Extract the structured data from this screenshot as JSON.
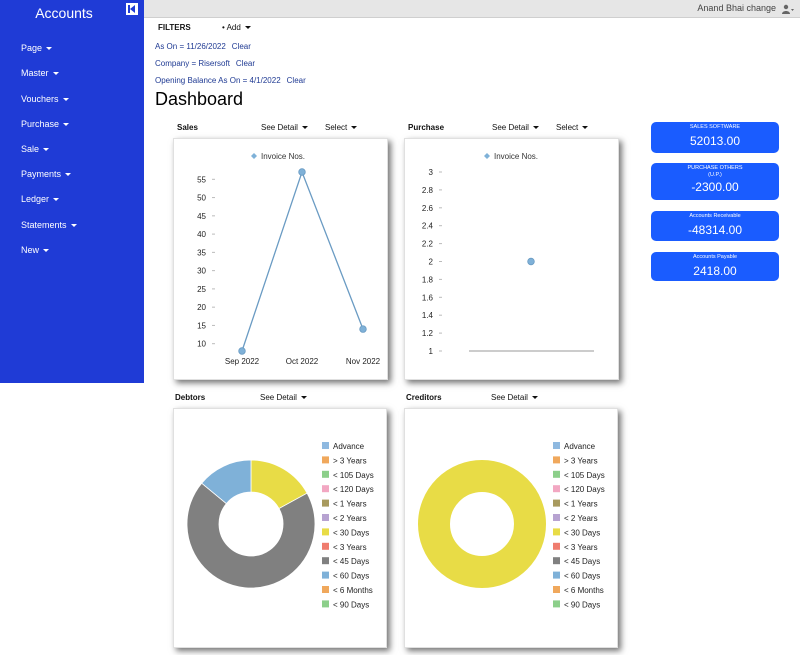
{
  "sidebar": {
    "title": "Accounts",
    "items": [
      {
        "label": "Page"
      },
      {
        "label": "Master"
      },
      {
        "label": "Vouchers"
      },
      {
        "label": "Purchase"
      },
      {
        "label": "Sale"
      },
      {
        "label": "Payments"
      },
      {
        "label": "Ledger"
      },
      {
        "label": "Statements"
      },
      {
        "label": "New"
      }
    ]
  },
  "topbar": {
    "user": "Anand Bhai change"
  },
  "filters": {
    "label": "FILTERS",
    "add": "Add",
    "lines": [
      {
        "text": "As On = 11/26/2022",
        "clear": "Clear"
      },
      {
        "text": "Company = Risersoft",
        "clear": "Clear"
      },
      {
        "text": "Opening Balance As On = 4/1/2022",
        "clear": "Clear"
      }
    ]
  },
  "page_title": "Dashboard",
  "panels": {
    "sales": {
      "title": "Sales",
      "see_detail": "See Detail",
      "select": "Select"
    },
    "purchase": {
      "title": "Purchase",
      "see_detail": "See Detail",
      "select": "Select"
    },
    "debtors": {
      "title": "Debtors",
      "see_detail": "See Detail"
    },
    "creditors": {
      "title": "Creditors",
      "see_detail": "See Detail"
    }
  },
  "stats": [
    {
      "label": "SALES SOFTWARE",
      "sub": "",
      "value": "52013.00"
    },
    {
      "label": "PURCHASE OTHERS",
      "sub": "(U.P.)",
      "value": "-2300.00"
    },
    {
      "label": "Accounts Receivable",
      "sub": "",
      "value": "-48314.00"
    },
    {
      "label": "Accounts Payable",
      "sub": "",
      "value": "2418.00"
    }
  ],
  "colors": {
    "sidebar": "#1f3bd6",
    "stat": "#1a5cff",
    "line": "#6a9bc3",
    "point": "#7fb1d8"
  },
  "chart_data": [
    {
      "type": "line",
      "legend": "Invoice Nos.",
      "x": [
        "Sep 2022",
        "Oct 2022",
        "Nov 2022"
      ],
      "series": [
        {
          "name": "Invoice Nos.",
          "values": [
            8,
            57,
            14
          ]
        }
      ],
      "yticks": [
        10,
        15,
        20,
        25,
        30,
        35,
        40,
        45,
        50,
        55
      ],
      "ylim": [
        8,
        57
      ]
    },
    {
      "type": "scatter",
      "legend": "Invoice Nos.",
      "series": [
        {
          "name": "Invoice Nos.",
          "values": [
            2
          ]
        }
      ],
      "yticks": [
        "1",
        "1.2",
        "1.4",
        "1.6",
        "1.8",
        "2",
        "2.2",
        "2.4",
        "2.6",
        "2.8",
        "3"
      ],
      "ylim": [
        1,
        3
      ]
    },
    {
      "type": "pie",
      "categories": [
        "Advance",
        "> 3 Years",
        "< 105 Days",
        "< 120 Days",
        "< 1 Years",
        "< 2 Years",
        "< 30 Days",
        "< 3 Years",
        "< 45 Days",
        "< 60 Days",
        "< 6 Months",
        "< 90 Days"
      ],
      "colors": [
        "#8fb9e0",
        "#f0a85c",
        "#8ccf8a",
        "#f2a7c2",
        "#a89a5e",
        "#b7a3d1",
        "#e8dc46",
        "#ef7c6e",
        "#808080",
        "#7fb1d8",
        "#f0a85c",
        "#8ccf8a"
      ],
      "values": [
        0,
        0,
        0,
        0,
        0,
        0,
        0.17,
        0,
        0.69,
        0.14,
        0,
        0
      ]
    },
    {
      "type": "pie",
      "categories": [
        "Advance",
        "> 3 Years",
        "< 105 Days",
        "< 120 Days",
        "< 1 Years",
        "< 2 Years",
        "< 30 Days",
        "< 3 Years",
        "< 45 Days",
        "< 60 Days",
        "< 6 Months",
        "< 90 Days"
      ],
      "colors": [
        "#8fb9e0",
        "#f0a85c",
        "#8ccf8a",
        "#f2a7c2",
        "#a89a5e",
        "#b7a3d1",
        "#e8dc46",
        "#ef7c6e",
        "#808080",
        "#7fb1d8",
        "#f0a85c",
        "#8ccf8a"
      ],
      "values": [
        0,
        0,
        0,
        0,
        0,
        0,
        1,
        0,
        0,
        0,
        0,
        0
      ]
    }
  ]
}
